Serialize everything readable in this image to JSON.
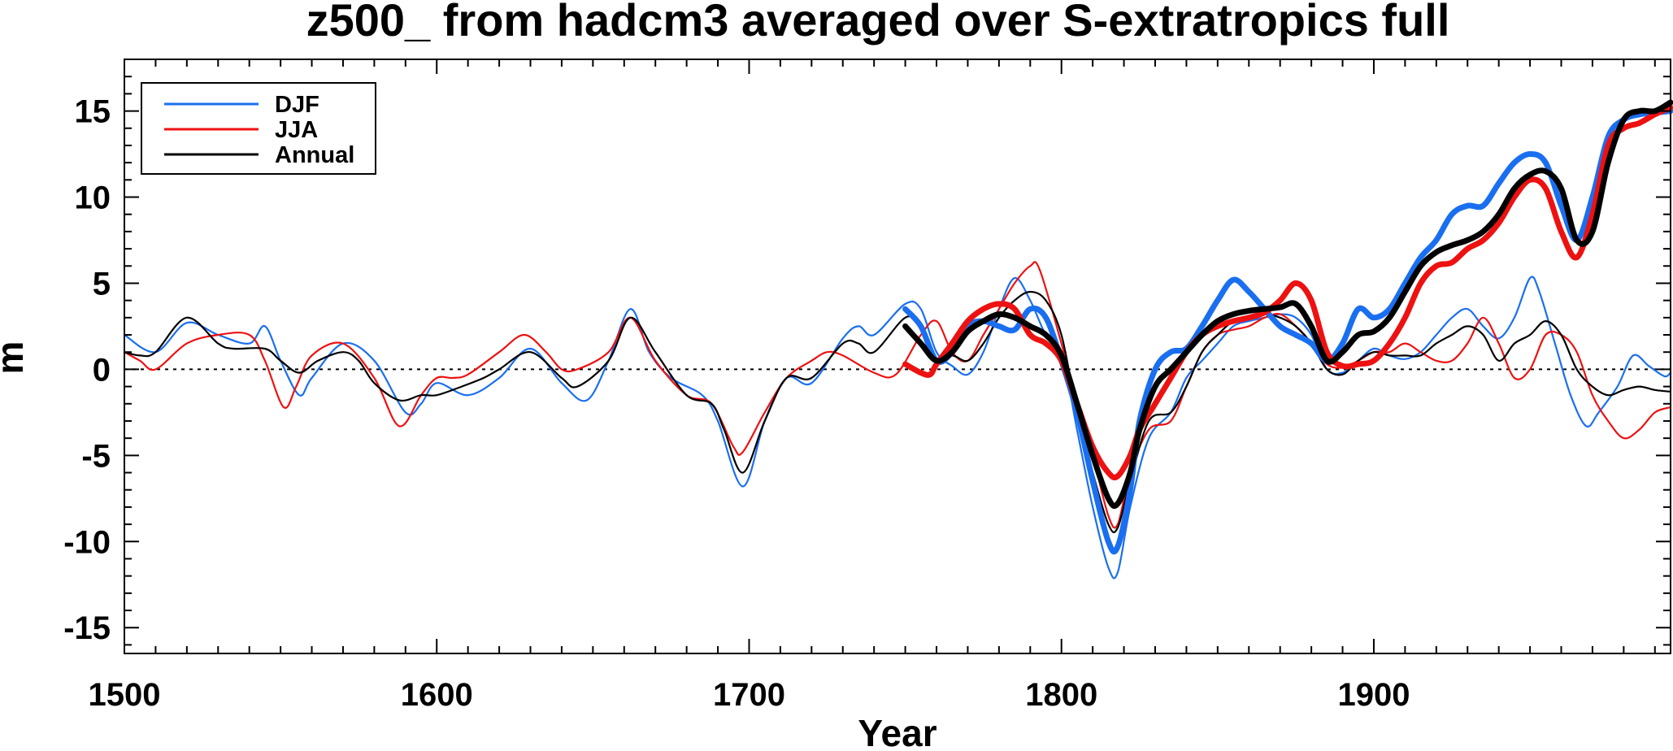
{
  "chart_data": {
    "type": "line",
    "title": "z500_ from hadcm3 averaged over S-extratropics full",
    "xlabel": "Year",
    "ylabel": "m",
    "xlim": [
      1500,
      1995
    ],
    "ylim": [
      -16.5,
      18
    ],
    "xticks": [
      1500,
      1600,
      1700,
      1800,
      1900
    ],
    "yticks": [
      -15,
      -10,
      -5,
      0,
      5,
      10,
      15
    ],
    "legend_position": "top-left",
    "reference_line": {
      "y": 0,
      "style": "dotted"
    },
    "legend": [
      "DJF",
      "JJA",
      "Annual"
    ],
    "series": [
      {
        "name": "DJF",
        "color": "#1a6ff0",
        "style": "thin",
        "x": [
          1500,
          1510,
          1520,
          1530,
          1540,
          1545,
          1550,
          1556,
          1560,
          1570,
          1580,
          1590,
          1595,
          1600,
          1610,
          1620,
          1630,
          1640,
          1648,
          1655,
          1662,
          1668,
          1675,
          1685,
          1690,
          1698,
          1705,
          1712,
          1720,
          1730,
          1735,
          1740,
          1750,
          1755,
          1760,
          1765,
          1770,
          1775,
          1780,
          1785,
          1790,
          1795,
          1800,
          1805,
          1810,
          1815,
          1818,
          1822,
          1828,
          1835,
          1840,
          1845,
          1850,
          1855,
          1860,
          1865,
          1870,
          1875,
          1880,
          1885,
          1890,
          1895,
          1900,
          1905,
          1910,
          1915,
          1920,
          1925,
          1930,
          1935,
          1940,
          1945,
          1950,
          1953,
          1958,
          1963,
          1968,
          1972,
          1978,
          1983,
          1988,
          1993,
          1995
        ],
        "y": [
          2.0,
          1.0,
          2.7,
          2.0,
          1.5,
          2.5,
          0.5,
          -1.5,
          -0.5,
          1.5,
          0.5,
          -2.5,
          -2.0,
          -0.8,
          -1.5,
          -0.5,
          1.2,
          -0.8,
          -1.8,
          0.5,
          3.5,
          1.0,
          -0.5,
          -1.5,
          -3.0,
          -6.8,
          -3.0,
          -0.5,
          -0.8,
          1.8,
          2.5,
          2.0,
          3.8,
          3.5,
          1.0,
          0.2,
          -0.3,
          1.0,
          3.5,
          5.3,
          4.0,
          2.0,
          1.0,
          -3.5,
          -8.0,
          -11.5,
          -11.8,
          -8.0,
          -4.0,
          -2.5,
          -0.5,
          0.5,
          1.5,
          2.5,
          2.8,
          3.0,
          3.2,
          3.0,
          2.0,
          0.0,
          -0.2,
          0.5,
          1.2,
          0.8,
          0.6,
          1.0,
          2.0,
          3.0,
          3.5,
          2.5,
          1.8,
          3.0,
          5.3,
          4.5,
          1.5,
          -1.5,
          -3.3,
          -2.5,
          -1.0,
          0.8,
          0.2,
          -0.4,
          -0.2
        ]
      },
      {
        "name": "JJA",
        "color": "#ee1111",
        "style": "thin",
        "x": [
          1500,
          1505,
          1510,
          1520,
          1530,
          1540,
          1545,
          1551,
          1555,
          1560,
          1570,
          1580,
          1588,
          1595,
          1600,
          1605,
          1610,
          1620,
          1628,
          1635,
          1640,
          1645,
          1655,
          1662,
          1670,
          1680,
          1688,
          1695,
          1698,
          1705,
          1712,
          1720,
          1725,
          1730,
          1740,
          1747,
          1755,
          1760,
          1765,
          1770,
          1775,
          1780,
          1785,
          1790,
          1793,
          1800,
          1805,
          1810,
          1815,
          1818,
          1822,
          1828,
          1835,
          1840,
          1845,
          1850,
          1855,
          1860,
          1865,
          1870,
          1875,
          1880,
          1885,
          1890,
          1895,
          1900,
          1905,
          1910,
          1915,
          1920,
          1925,
          1930,
          1935,
          1940,
          1945,
          1950,
          1955,
          1960,
          1965,
          1970,
          1975,
          1980,
          1985,
          1990,
          1995
        ],
        "y": [
          1.0,
          0.5,
          0.0,
          1.5,
          2.0,
          2.0,
          0.5,
          -2.2,
          -1.0,
          0.8,
          1.5,
          -0.5,
          -3.3,
          -1.5,
          -0.5,
          -0.5,
          -0.3,
          1.0,
          2.0,
          1.0,
          0.0,
          0.0,
          1.0,
          3.0,
          0.5,
          -1.5,
          -2.0,
          -4.5,
          -4.8,
          -2.5,
          -0.5,
          0.5,
          1.0,
          0.8,
          -0.2,
          -0.3,
          2.0,
          2.8,
          1.0,
          0.5,
          2.0,
          3.5,
          5.0,
          6.0,
          5.8,
          1.5,
          -2.0,
          -5.0,
          -8.5,
          -9.0,
          -6.0,
          -3.5,
          -3.0,
          -1.0,
          1.0,
          2.0,
          2.3,
          2.5,
          3.0,
          3.2,
          2.5,
          1.5,
          0.3,
          0.1,
          0.5,
          1.0,
          1.0,
          1.5,
          1.0,
          0.5,
          0.5,
          1.5,
          3.0,
          1.5,
          -0.5,
          0.0,
          2.0,
          2.0,
          1.0,
          -1.5,
          -3.0,
          -4.0,
          -3.5,
          -2.5,
          -2.2
        ]
      },
      {
        "name": "Annual",
        "color": "#000000",
        "style": "thin",
        "x": [
          1500,
          1505,
          1510,
          1520,
          1530,
          1535,
          1545,
          1550,
          1556,
          1562,
          1570,
          1575,
          1580,
          1588,
          1595,
          1600,
          1608,
          1615,
          1620,
          1630,
          1640,
          1645,
          1655,
          1662,
          1670,
          1680,
          1688,
          1692,
          1698,
          1705,
          1712,
          1720,
          1730,
          1735,
          1740,
          1750,
          1755,
          1760,
          1765,
          1770,
          1775,
          1780,
          1785,
          1790,
          1795,
          1800,
          1805,
          1810,
          1815,
          1818,
          1822,
          1828,
          1835,
          1840,
          1845,
          1850,
          1855,
          1860,
          1865,
          1870,
          1875,
          1880,
          1885,
          1890,
          1895,
          1900,
          1905,
          1910,
          1915,
          1920,
          1925,
          1930,
          1935,
          1940,
          1945,
          1950,
          1955,
          1960,
          1965,
          1970,
          1975,
          1980,
          1985,
          1990,
          1995
        ],
        "y": [
          1.0,
          0.8,
          1.0,
          3.0,
          1.5,
          1.2,
          1.2,
          0.5,
          -0.2,
          0.5,
          1.0,
          0.5,
          -0.8,
          -1.8,
          -1.5,
          -1.5,
          -1.0,
          -0.5,
          0.0,
          1.0,
          -0.5,
          -1.0,
          0.5,
          3.0,
          1.0,
          -1.5,
          -2.0,
          -3.5,
          -6.0,
          -3.0,
          -0.5,
          -0.5,
          1.5,
          1.5,
          1.0,
          3.0,
          2.5,
          0.5,
          0.8,
          0.5,
          1.5,
          3.0,
          4.0,
          4.5,
          4.0,
          2.0,
          -2.5,
          -6.0,
          -9.0,
          -9.2,
          -6.5,
          -3.0,
          -2.5,
          -1.0,
          1.0,
          2.0,
          2.8,
          3.0,
          3.2,
          3.0,
          2.5,
          1.5,
          0.0,
          -0.3,
          0.5,
          1.0,
          0.8,
          0.8,
          0.8,
          1.5,
          2.0,
          2.5,
          2.0,
          0.5,
          1.5,
          2.0,
          2.8,
          2.0,
          0.0,
          -1.0,
          -1.5,
          -1.2,
          -1.0,
          -1.2,
          -1.3
        ]
      },
      {
        "name": "DJF",
        "color": "#1a6ff0",
        "style": "thick",
        "x": [
          1750,
          1755,
          1760,
          1765,
          1770,
          1775,
          1780,
          1785,
          1790,
          1795,
          1800,
          1805,
          1810,
          1815,
          1818,
          1822,
          1825,
          1830,
          1835,
          1840,
          1845,
          1850,
          1855,
          1860,
          1865,
          1870,
          1875,
          1880,
          1885,
          1890,
          1895,
          1900,
          1905,
          1910,
          1915,
          1920,
          1925,
          1930,
          1935,
          1940,
          1945,
          1950,
          1955,
          1960,
          1965,
          1970,
          1975,
          1980,
          1985,
          1990,
          1995
        ],
        "y": [
          3.5,
          2.5,
          0.5,
          1.0,
          2.5,
          2.8,
          2.5,
          2.3,
          3.5,
          3.0,
          0.5,
          -2.5,
          -6.5,
          -10.0,
          -10.3,
          -7.0,
          -3.0,
          0.0,
          1.0,
          1.2,
          2.5,
          4.0,
          5.2,
          4.5,
          3.5,
          2.5,
          2.0,
          1.5,
          0.5,
          1.5,
          3.5,
          3.0,
          3.5,
          5.0,
          6.5,
          7.5,
          9.0,
          9.5,
          9.5,
          10.8,
          12.0,
          12.5,
          12.0,
          9.5,
          7.5,
          10.0,
          13.5,
          14.5,
          14.8,
          14.9,
          15.0
        ]
      },
      {
        "name": "JJA",
        "color": "#ee1111",
        "style": "thick",
        "x": [
          1750,
          1755,
          1758,
          1760,
          1765,
          1770,
          1775,
          1780,
          1785,
          1790,
          1795,
          1800,
          1805,
          1810,
          1815,
          1818,
          1822,
          1825,
          1830,
          1835,
          1840,
          1845,
          1850,
          1855,
          1860,
          1865,
          1870,
          1875,
          1880,
          1885,
          1890,
          1895,
          1900,
          1905,
          1910,
          1915,
          1920,
          1925,
          1930,
          1935,
          1940,
          1945,
          1950,
          1955,
          1960,
          1965,
          1970,
          1975,
          1980,
          1985,
          1990,
          1995
        ],
        "y": [
          0.3,
          -0.2,
          -0.3,
          0.3,
          1.5,
          2.8,
          3.5,
          3.8,
          3.5,
          2.0,
          1.5,
          0.5,
          -2.0,
          -4.5,
          -6.0,
          -6.2,
          -5.0,
          -3.5,
          -2.0,
          -0.5,
          1.0,
          2.0,
          2.5,
          2.8,
          3.0,
          3.3,
          4.0,
          5.0,
          4.0,
          1.0,
          0.2,
          0.3,
          0.5,
          1.5,
          3.0,
          5.0,
          6.0,
          6.2,
          7.0,
          7.5,
          8.5,
          10.0,
          11.0,
          10.5,
          8.0,
          6.5,
          9.0,
          13.0,
          14.0,
          14.3,
          14.8,
          15.2
        ]
      },
      {
        "name": "Annual",
        "color": "#000000",
        "style": "thick",
        "x": [
          1750,
          1755,
          1760,
          1765,
          1770,
          1775,
          1780,
          1785,
          1790,
          1795,
          1800,
          1805,
          1810,
          1815,
          1818,
          1822,
          1825,
          1830,
          1835,
          1840,
          1845,
          1850,
          1855,
          1860,
          1865,
          1870,
          1875,
          1880,
          1885,
          1890,
          1895,
          1900,
          1905,
          1910,
          1915,
          1920,
          1925,
          1930,
          1935,
          1940,
          1945,
          1950,
          1955,
          1960,
          1965,
          1970,
          1975,
          1980,
          1985,
          1990,
          1995
        ],
        "y": [
          2.5,
          1.5,
          0.5,
          1.0,
          2.2,
          2.8,
          3.2,
          3.0,
          2.5,
          2.0,
          0.8,
          -2.0,
          -5.0,
          -7.5,
          -7.8,
          -6.0,
          -3.5,
          -1.0,
          0.0,
          1.0,
          2.0,
          2.8,
          3.2,
          3.4,
          3.5,
          3.6,
          3.8,
          2.5,
          0.5,
          1.0,
          2.0,
          2.2,
          3.0,
          4.5,
          6.0,
          6.8,
          7.2,
          7.5,
          8.0,
          9.0,
          10.5,
          11.3,
          11.5,
          10.5,
          7.5,
          8.0,
          12.0,
          14.5,
          15.0,
          15.0,
          15.5
        ]
      }
    ]
  }
}
